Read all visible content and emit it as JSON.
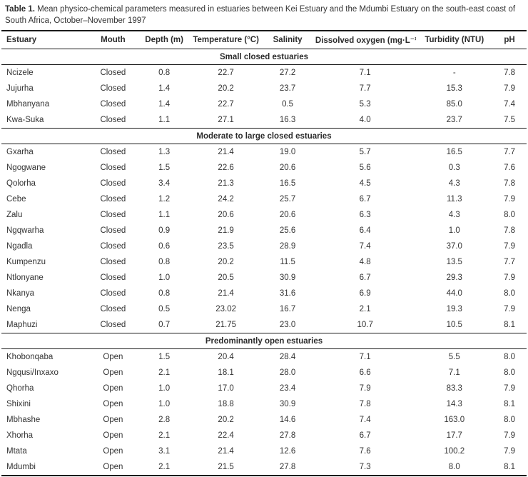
{
  "title": {
    "label": "Table 1.",
    "text": " Mean physico-chemical parameters measured in estuaries between Kei Estuary and the Mdumbi Estuary on the south-east coast of South Africa, October–November 1997"
  },
  "table": {
    "columns": [
      "Estuary",
      "Mouth",
      "Depth (m)",
      "Temperature (°C)",
      "Salinity",
      "Dissolved oxygen (mg·L⁻¹)",
      "Turbidity (NTU)",
      "pH"
    ],
    "sections": [
      {
        "header": "Small closed estuaries",
        "rows": [
          [
            "Ncizele",
            "Closed",
            "0.8",
            "22.7",
            "27.2",
            "7.1",
            "-",
            "7.8"
          ],
          [
            "Jujurha",
            "Closed",
            "1.4",
            "20.2",
            "23.7",
            "7.7",
            "15.3",
            "7.9"
          ],
          [
            "Mbhanyana",
            "Closed",
            "1.4",
            "22.7",
            "0.5",
            "5.3",
            "85.0",
            "7.4"
          ],
          [
            "Kwa-Suka",
            "Closed",
            "1.1",
            "27.1",
            "16.3",
            "4.0",
            "23.7",
            "7.5"
          ]
        ]
      },
      {
        "header": "Moderate to large closed estuaries",
        "rows": [
          [
            "Gxarha",
            "Closed",
            "1.3",
            "21.4",
            "19.0",
            "5.7",
            "16.5",
            "7.7"
          ],
          [
            "Ngogwane",
            "Closed",
            "1.5",
            "22.6",
            "20.6",
            "5.6",
            "0.3",
            "7.6"
          ],
          [
            "Qolorha",
            "Closed",
            "3.4",
            "21.3",
            "16.5",
            "4.5",
            "4.3",
            "7.8"
          ],
          [
            "Cebe",
            "Closed",
            "1.2",
            "24.2",
            "25.7",
            "6.7",
            "11.3",
            "7.9"
          ],
          [
            "Zalu",
            "Closed",
            "1.1",
            "20.6",
            "20.6",
            "6.3",
            "4.3",
            "8.0"
          ],
          [
            "Ngqwarha",
            "Closed",
            "0.9",
            "21.9",
            "25.6",
            "6.4",
            "1.0",
            "7.8"
          ],
          [
            "Ngadla",
            "Closed",
            "0.6",
            "23.5",
            "28.9",
            "7.4",
            "37.0",
            "7.9"
          ],
          [
            "Kumpenzu",
            "Closed",
            "0.8",
            "20.2",
            "11.5",
            "4.8",
            "13.5",
            "7.7"
          ],
          [
            "Ntlonyane",
            "Closed",
            "1.0",
            "20.5",
            "30.9",
            "6.7",
            "29.3",
            "7.9"
          ],
          [
            "Nkanya",
            "Closed",
            "0.8",
            "21.4",
            "31.6",
            "6.9",
            "44.0",
            "8.0"
          ],
          [
            "Nenga",
            "Closed",
            "0.5",
            "23.02",
            "16.7",
            "2.1",
            "19.3",
            "7.9"
          ],
          [
            "Maphuzi",
            "Closed",
            "0.7",
            "21.75",
            "23.0",
            "10.7",
            "10.5",
            "8.1"
          ]
        ]
      },
      {
        "header": "Predominantly open estuaries",
        "rows": [
          [
            "Khobonqaba",
            "Open",
            "1.5",
            "20.4",
            "28.4",
            "7.1",
            "5.5",
            "8.0"
          ],
          [
            "Ngqusi/Inxaxo",
            "Open",
            "2.1",
            "18.1",
            "28.0",
            "6.6",
            "7.1",
            "8.0"
          ],
          [
            "Qhorha",
            "Open",
            "1.0",
            "17.0",
            "23.4",
            "7.9",
            "83.3",
            "7.9"
          ],
          [
            "Shixini",
            "Open",
            "1.0",
            "18.8",
            "30.9",
            "7.8",
            "14.3",
            "8.1"
          ],
          [
            "Mbhashe",
            "Open",
            "2.8",
            "20.2",
            "14.6",
            "7.4",
            "163.0",
            "8.0"
          ],
          [
            "Xhorha",
            "Open",
            "2.1",
            "22.4",
            "27.8",
            "6.7",
            "17.7",
            "7.9"
          ],
          [
            "Mtata",
            "Open",
            "3.1",
            "21.4",
            "12.6",
            "7.6",
            "100.2",
            "7.9"
          ],
          [
            "Mdumbi",
            "Open",
            "2.1",
            "21.5",
            "27.8",
            "7.3",
            "8.0",
            "8.1"
          ]
        ]
      }
    ]
  },
  "colors": {
    "text": "#333333",
    "heading_text": "#2b2b2b",
    "border": "#1a1a1a",
    "background": "#ffffff"
  }
}
